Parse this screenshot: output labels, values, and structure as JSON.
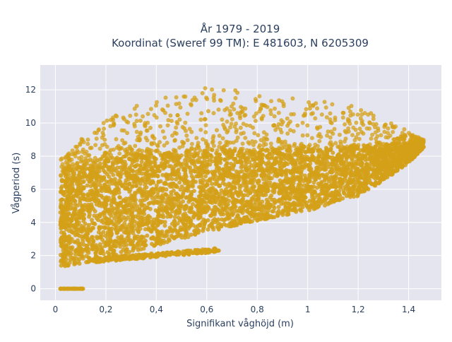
{
  "chart_data": {
    "type": "scatter",
    "title_line1": "År 1979 - 2019",
    "title_line2": "Koordinat (Sweref 99 TM): E 481603, N 6205309",
    "xlabel": "Signifikant våghöjd (m)",
    "ylabel": "Vågperiod (s)",
    "xlim": [
      -0.06,
      1.53
    ],
    "ylim": [
      -0.7,
      13.5
    ],
    "x_ticks": [
      0,
      0.2,
      0.4,
      0.6,
      0.8,
      1,
      1.2,
      1.4
    ],
    "x_tick_labels": [
      "0",
      "0,2",
      "0,4",
      "0,6",
      "0,8",
      "1",
      "1,2",
      "1,4"
    ],
    "y_ticks": [
      0,
      2,
      4,
      6,
      8,
      10,
      12
    ],
    "y_tick_labels": [
      "0",
      "2",
      "4",
      "6",
      "8",
      "10",
      "12"
    ],
    "marker_color": "#D4A017",
    "grid": true,
    "background": "#E5E5EF",
    "point_cloud": {
      "lower_envelope": [
        [
          0.02,
          1.3
        ],
        [
          0.2,
          1.8
        ],
        [
          0.4,
          2.6
        ],
        [
          0.6,
          3.4
        ],
        [
          0.8,
          4.1
        ],
        [
          1.0,
          4.7
        ],
        [
          1.2,
          5.6
        ],
        [
          1.3,
          6.5
        ],
        [
          1.4,
          7.6
        ],
        [
          1.46,
          8.5
        ]
      ],
      "upper_envelope": [
        [
          0.02,
          7.8
        ],
        [
          0.1,
          9.0
        ],
        [
          0.2,
          10.5
        ],
        [
          0.4,
          11.5
        ],
        [
          0.6,
          12.2
        ],
        [
          0.8,
          11.8
        ],
        [
          1.0,
          11.5
        ],
        [
          1.2,
          11.0
        ],
        [
          1.4,
          9.5
        ],
        [
          1.46,
          9.0
        ]
      ],
      "dense_upper": [
        [
          0.02,
          6.8
        ],
        [
          0.1,
          7.6
        ],
        [
          0.3,
          8.1
        ],
        [
          0.6,
          8.3
        ],
        [
          0.9,
          8.4
        ],
        [
          1.2,
          8.6
        ],
        [
          1.4,
          8.8
        ],
        [
          1.46,
          8.9
        ]
      ],
      "secondary_band": [
        [
          0.15,
          1.7
        ],
        [
          0.3,
          1.9
        ],
        [
          0.5,
          2.15
        ],
        [
          0.65,
          2.35
        ]
      ],
      "zero_points_x": [
        0.02,
        0.11
      ]
    }
  }
}
